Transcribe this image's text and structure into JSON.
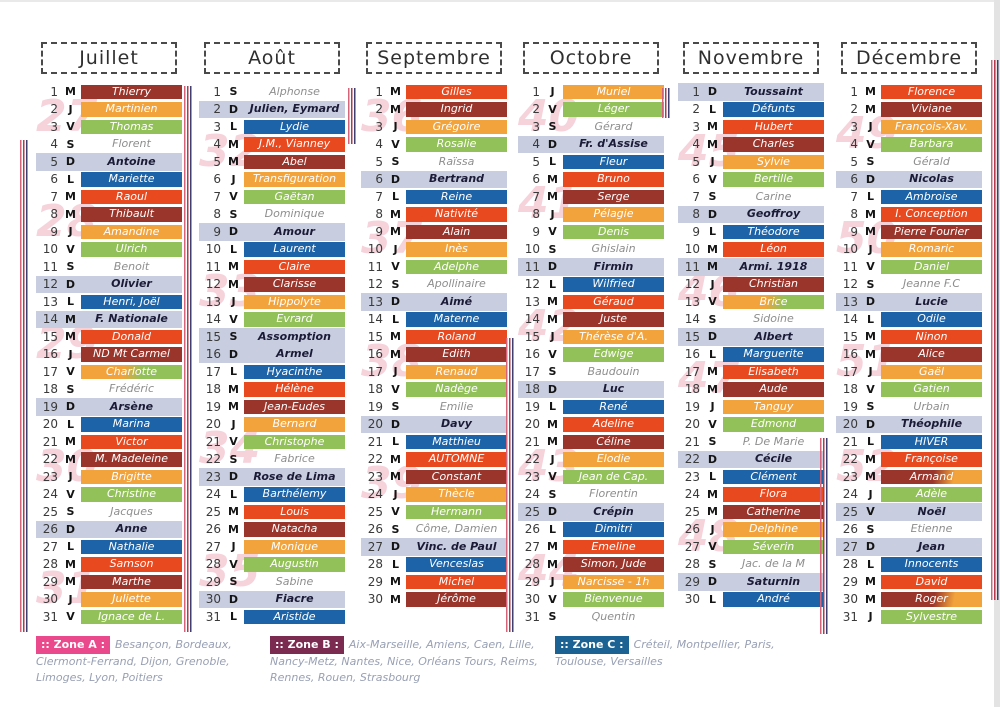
{
  "palette": {
    "pills": {
      "b": "#1d63a8",
      "r": "#e8491f",
      "m": "#9a352b",
      "o": "#f2a33c",
      "g": "#93c159"
    },
    "sunday_row_bg": "#c8cedf",
    "sunday_text": "#1b1b38",
    "saturday_text": "#8e8e8e",
    "week_number_color": "#f0aebf",
    "zone_a_bg": "#ea4a8b",
    "zone_b_bg": "#7c2b50",
    "zone_c_bg": "#1c6394"
  },
  "day_fields": [
    "date",
    "weekday_letter",
    "name",
    "style (b=blue m=maroon r=redorange o=orange g=green x=plain-saturday s=sunday-or-holiday og/mo=gradient)"
  ],
  "months": [
    {
      "name": "Juillet",
      "weeks": [
        [
          27,
          2
        ],
        [
          28,
          8
        ],
        [
          29,
          15
        ],
        [
          30,
          22
        ],
        [
          31,
          29
        ]
      ],
      "days": [
        [
          1,
          "M",
          "Thierry",
          "m"
        ],
        [
          2,
          "J",
          "Martinien",
          "o"
        ],
        [
          3,
          "V",
          "Thomas",
          "g"
        ],
        [
          4,
          "S",
          "Florent",
          "x"
        ],
        [
          5,
          "D",
          "Antoine",
          "s"
        ],
        [
          6,
          "L",
          "Mariette",
          "b"
        ],
        [
          7,
          "M",
          "Raoul",
          "r"
        ],
        [
          8,
          "M",
          "Thibault",
          "m"
        ],
        [
          9,
          "J",
          "Amandine",
          "o"
        ],
        [
          10,
          "V",
          "Ulrich",
          "g"
        ],
        [
          11,
          "S",
          "Benoit",
          "x"
        ],
        [
          12,
          "D",
          "Olivier",
          "s"
        ],
        [
          13,
          "L",
          "Henri, Joël",
          "b"
        ],
        [
          14,
          "M",
          "F. Nationale",
          "s"
        ],
        [
          15,
          "M",
          "Donald",
          "r"
        ],
        [
          16,
          "J",
          "ND Mt Carmel",
          "m"
        ],
        [
          17,
          "V",
          "Charlotte",
          "og"
        ],
        [
          18,
          "S",
          "Frédéric",
          "x"
        ],
        [
          19,
          "D",
          "Arsène",
          "s"
        ],
        [
          20,
          "L",
          "Marina",
          "b"
        ],
        [
          21,
          "M",
          "Victor",
          "r"
        ],
        [
          22,
          "M",
          "M. Madeleine",
          "m"
        ],
        [
          23,
          "J",
          "Brigitte",
          "o"
        ],
        [
          24,
          "V",
          "Christine",
          "g"
        ],
        [
          25,
          "S",
          "Jacques",
          "x"
        ],
        [
          26,
          "D",
          "Anne",
          "s"
        ],
        [
          27,
          "L",
          "Nathalie",
          "b"
        ],
        [
          28,
          "M",
          "Samson",
          "r"
        ],
        [
          29,
          "M",
          "Marthe",
          "m"
        ],
        [
          30,
          "J",
          "Juliette",
          "o"
        ],
        [
          31,
          "V",
          "Ignace de L.",
          "g"
        ]
      ]
    },
    {
      "name": "Août",
      "weeks": [
        [
          32,
          4
        ],
        [
          33,
          12
        ],
        [
          34,
          21
        ],
        [
          35,
          28
        ]
      ],
      "days": [
        [
          1,
          "S",
          "Alphonse",
          "x"
        ],
        [
          2,
          "D",
          "Julien, Eymard",
          "s"
        ],
        [
          3,
          "L",
          "Lydie",
          "b"
        ],
        [
          4,
          "M",
          "J.M., Vianney",
          "r"
        ],
        [
          5,
          "M",
          "Abel",
          "m"
        ],
        [
          6,
          "J",
          "Transfiguration",
          "o"
        ],
        [
          7,
          "V",
          "Gaëtan",
          "g"
        ],
        [
          8,
          "S",
          "Dominique",
          "x"
        ],
        [
          9,
          "D",
          "Amour",
          "s"
        ],
        [
          10,
          "L",
          "Laurent",
          "b"
        ],
        [
          11,
          "M",
          "Claire",
          "r"
        ],
        [
          12,
          "M",
          "Clarisse",
          "m"
        ],
        [
          13,
          "J",
          "Hippolyte",
          "o"
        ],
        [
          14,
          "V",
          "Evrard",
          "g"
        ],
        [
          15,
          "S",
          "Assomption",
          "s"
        ],
        [
          16,
          "D",
          "Armel",
          "s"
        ],
        [
          17,
          "L",
          "Hyacinthe",
          "b"
        ],
        [
          18,
          "M",
          "Hélène",
          "r"
        ],
        [
          19,
          "M",
          "Jean-Eudes",
          "m"
        ],
        [
          20,
          "J",
          "Bernard",
          "o"
        ],
        [
          21,
          "V",
          "Christophe",
          "g"
        ],
        [
          22,
          "S",
          "Fabrice",
          "x"
        ],
        [
          23,
          "D",
          "Rose de Lima",
          "s"
        ],
        [
          24,
          "L",
          "Barthélemy",
          "b"
        ],
        [
          25,
          "M",
          "Louis",
          "r"
        ],
        [
          26,
          "M",
          "Natacha",
          "m"
        ],
        [
          27,
          "J",
          "Monique",
          "o"
        ],
        [
          28,
          "V",
          "Augustin",
          "g"
        ],
        [
          29,
          "S",
          "Sabine",
          "x"
        ],
        [
          30,
          "D",
          "Fiacre",
          "s"
        ],
        [
          31,
          "L",
          "Aristide",
          "b"
        ]
      ]
    },
    {
      "name": "Septembre",
      "weeks": [
        [
          36,
          2
        ],
        [
          37,
          9
        ],
        [
          38,
          16
        ],
        [
          39,
          23
        ]
      ],
      "days": [
        [
          1,
          "M",
          "Gilles",
          "r"
        ],
        [
          2,
          "M",
          "Ingrid",
          "m"
        ],
        [
          3,
          "J",
          "Grégoire",
          "o"
        ],
        [
          4,
          "V",
          "Rosalie",
          "g"
        ],
        [
          5,
          "S",
          "Raïssa",
          "x"
        ],
        [
          6,
          "D",
          "Bertrand",
          "s"
        ],
        [
          7,
          "L",
          "Reine",
          "b"
        ],
        [
          8,
          "M",
          "Nativité",
          "r"
        ],
        [
          9,
          "M",
          "Alain",
          "m"
        ],
        [
          10,
          "J",
          "Inès",
          "o"
        ],
        [
          11,
          "V",
          "Adelphe",
          "g"
        ],
        [
          12,
          "S",
          "Apollinaire",
          "x"
        ],
        [
          13,
          "D",
          "Aimé",
          "s"
        ],
        [
          14,
          "L",
          "Materne",
          "b"
        ],
        [
          15,
          "M",
          "Roland",
          "r"
        ],
        [
          16,
          "M",
          "Edith",
          "m"
        ],
        [
          17,
          "J",
          "Renaud",
          "o"
        ],
        [
          18,
          "V",
          "Nadège",
          "g"
        ],
        [
          19,
          "S",
          "Emilie",
          "x"
        ],
        [
          20,
          "D",
          "Davy",
          "s"
        ],
        [
          21,
          "L",
          "Matthieu",
          "b"
        ],
        [
          22,
          "M",
          "AUTOMNE",
          "r"
        ],
        [
          23,
          "M",
          "Constant",
          "m"
        ],
        [
          24,
          "J",
          "Thècle",
          "o"
        ],
        [
          25,
          "V",
          "Hermann",
          "g"
        ],
        [
          26,
          "S",
          "Côme, Damien",
          "x"
        ],
        [
          27,
          "D",
          "Vinc. de Paul",
          "s"
        ],
        [
          28,
          "L",
          "Venceslas",
          "b"
        ],
        [
          29,
          "M",
          "Michel",
          "r"
        ],
        [
          30,
          "M",
          "Jérôme",
          "m"
        ]
      ]
    },
    {
      "name": "Octobre",
      "weeks": [
        [
          40,
          2
        ],
        [
          41,
          7
        ],
        [
          42,
          14
        ],
        [
          43,
          22
        ],
        [
          44,
          28
        ]
      ],
      "days": [
        [
          1,
          "J",
          "Muriel",
          "o"
        ],
        [
          2,
          "V",
          "Léger",
          "g"
        ],
        [
          3,
          "S",
          "Gérard",
          "x"
        ],
        [
          4,
          "D",
          "Fr. d'Assise",
          "s"
        ],
        [
          5,
          "L",
          "Fleur",
          "b"
        ],
        [
          6,
          "M",
          "Bruno",
          "r"
        ],
        [
          7,
          "M",
          "Serge",
          "m"
        ],
        [
          8,
          "J",
          "Pélagie",
          "o"
        ],
        [
          9,
          "V",
          "Denis",
          "g"
        ],
        [
          10,
          "S",
          "Ghislain",
          "x"
        ],
        [
          11,
          "D",
          "Firmin",
          "s"
        ],
        [
          12,
          "L",
          "Wilfried",
          "b"
        ],
        [
          13,
          "M",
          "Géraud",
          "r"
        ],
        [
          14,
          "M",
          "Juste",
          "m"
        ],
        [
          15,
          "J",
          "Thérèse d'A.",
          "o"
        ],
        [
          16,
          "V",
          "Edwige",
          "g"
        ],
        [
          17,
          "S",
          "Baudouin",
          "x"
        ],
        [
          18,
          "D",
          "Luc",
          "s"
        ],
        [
          19,
          "L",
          "René",
          "b"
        ],
        [
          20,
          "M",
          "Adeline",
          "r"
        ],
        [
          21,
          "M",
          "Céline",
          "m"
        ],
        [
          22,
          "J",
          "Elodie",
          "o"
        ],
        [
          23,
          "V",
          "Jean de Cap.",
          "g"
        ],
        [
          24,
          "S",
          "Florentin",
          "x"
        ],
        [
          25,
          "D",
          "Crépin",
          "s"
        ],
        [
          26,
          "L",
          "Dimitri",
          "b"
        ],
        [
          27,
          "M",
          "Emeline",
          "r"
        ],
        [
          28,
          "M",
          "Simon, Jude",
          "m"
        ],
        [
          29,
          "J",
          "Narcisse - 1h",
          "o"
        ],
        [
          30,
          "V",
          "Bienvenue",
          "g"
        ],
        [
          31,
          "S",
          "Quentin",
          "x"
        ]
      ]
    },
    {
      "name": "Novembre",
      "weeks": [
        [
          45,
          4
        ],
        [
          46,
          12
        ],
        [
          47,
          17
        ],
        [
          48,
          26
        ]
      ],
      "days": [
        [
          1,
          "D",
          "Toussaint",
          "s"
        ],
        [
          2,
          "L",
          "Défunts",
          "b"
        ],
        [
          3,
          "M",
          "Hubert",
          "r"
        ],
        [
          4,
          "M",
          "Charles",
          "m"
        ],
        [
          5,
          "J",
          "Sylvie",
          "o"
        ],
        [
          6,
          "V",
          "Bertille",
          "g"
        ],
        [
          7,
          "S",
          "Carine",
          "x"
        ],
        [
          8,
          "D",
          "Geoffroy",
          "s"
        ],
        [
          9,
          "L",
          "Théodore",
          "b"
        ],
        [
          10,
          "M",
          "Léon",
          "r"
        ],
        [
          11,
          "M",
          "Armi. 1918",
          "s"
        ],
        [
          12,
          "J",
          "Christian",
          "m"
        ],
        [
          13,
          "V",
          "Brice",
          "og"
        ],
        [
          14,
          "S",
          "Sidoine",
          "x"
        ],
        [
          15,
          "D",
          "Albert",
          "s"
        ],
        [
          16,
          "L",
          "Marguerite",
          "b"
        ],
        [
          17,
          "M",
          "Elisabeth",
          "r"
        ],
        [
          18,
          "M",
          "Aude",
          "m"
        ],
        [
          19,
          "J",
          "Tanguy",
          "o"
        ],
        [
          20,
          "V",
          "Edmond",
          "g"
        ],
        [
          21,
          "S",
          "P. De Marie",
          "x"
        ],
        [
          22,
          "D",
          "Cécile",
          "s"
        ],
        [
          23,
          "L",
          "Clément",
          "b"
        ],
        [
          24,
          "M",
          "Flora",
          "r"
        ],
        [
          25,
          "M",
          "Catherine",
          "m"
        ],
        [
          26,
          "J",
          "Delphine",
          "o"
        ],
        [
          27,
          "V",
          "Séverin",
          "g"
        ],
        [
          28,
          "S",
          "Jac. de la M",
          "x"
        ],
        [
          29,
          "D",
          "Saturnin",
          "s"
        ],
        [
          30,
          "L",
          "André",
          "b"
        ]
      ]
    },
    {
      "name": "Décembre",
      "weeks": [
        [
          49,
          3
        ],
        [
          50,
          9
        ],
        [
          51,
          16
        ],
        [
          52,
          22
        ]
      ],
      "days": [
        [
          1,
          "M",
          "Florence",
          "r"
        ],
        [
          2,
          "M",
          "Viviane",
          "m"
        ],
        [
          3,
          "J",
          "François-Xav.",
          "o"
        ],
        [
          4,
          "V",
          "Barbara",
          "g"
        ],
        [
          5,
          "S",
          "Gérald",
          "x"
        ],
        [
          6,
          "D",
          "Nicolas",
          "s"
        ],
        [
          7,
          "L",
          "Ambroise",
          "b"
        ],
        [
          8,
          "M",
          "I. Conception",
          "r"
        ],
        [
          9,
          "M",
          "Pierre Fourier",
          "m"
        ],
        [
          10,
          "J",
          "Romaric",
          "o"
        ],
        [
          11,
          "V",
          "Daniel",
          "g"
        ],
        [
          12,
          "S",
          "Jeanne F.C",
          "x"
        ],
        [
          13,
          "D",
          "Lucie",
          "s"
        ],
        [
          14,
          "L",
          "Odile",
          "b"
        ],
        [
          15,
          "M",
          "Ninon",
          "r"
        ],
        [
          16,
          "M",
          "Alice",
          "m"
        ],
        [
          17,
          "J",
          "Gaël",
          "o"
        ],
        [
          18,
          "V",
          "Gatien",
          "g"
        ],
        [
          19,
          "S",
          "Urbain",
          "x"
        ],
        [
          20,
          "D",
          "Théophile",
          "s"
        ],
        [
          21,
          "L",
          "HIVER",
          "b"
        ],
        [
          22,
          "M",
          "Françoise",
          "r"
        ],
        [
          23,
          "M",
          "Armand",
          "mo"
        ],
        [
          24,
          "J",
          "Adèle",
          "g"
        ],
        [
          25,
          "V",
          "Noël",
          "s"
        ],
        [
          26,
          "S",
          "Etienne",
          "x"
        ],
        [
          27,
          "D",
          "Jean",
          "s"
        ],
        [
          28,
          "L",
          "Innocents",
          "b"
        ],
        [
          29,
          "M",
          "David",
          "r"
        ],
        [
          30,
          "M",
          "Roger",
          "mo"
        ],
        [
          31,
          "J",
          "Sylvestre",
          "g"
        ]
      ]
    }
  ],
  "zones": [
    {
      "label": ":: Zone A :",
      "cities": "Besançon, Bordeaux, Clermont-Ferrand, Dijon, Grenoble, Limoges, Lyon, Poitiers"
    },
    {
      "label": ":: Zone B :",
      "cities": "Aix-Marseille, Amiens, Caen, Lille, Nancy-Metz, Nantes, Nice, Orléans Tours, Reims, Rennes, Rouen, Strasbourg"
    },
    {
      "label": ":: Zone C :",
      "cities": "Créteil, Montpellier, Paris, Toulouse, Versailles"
    }
  ]
}
